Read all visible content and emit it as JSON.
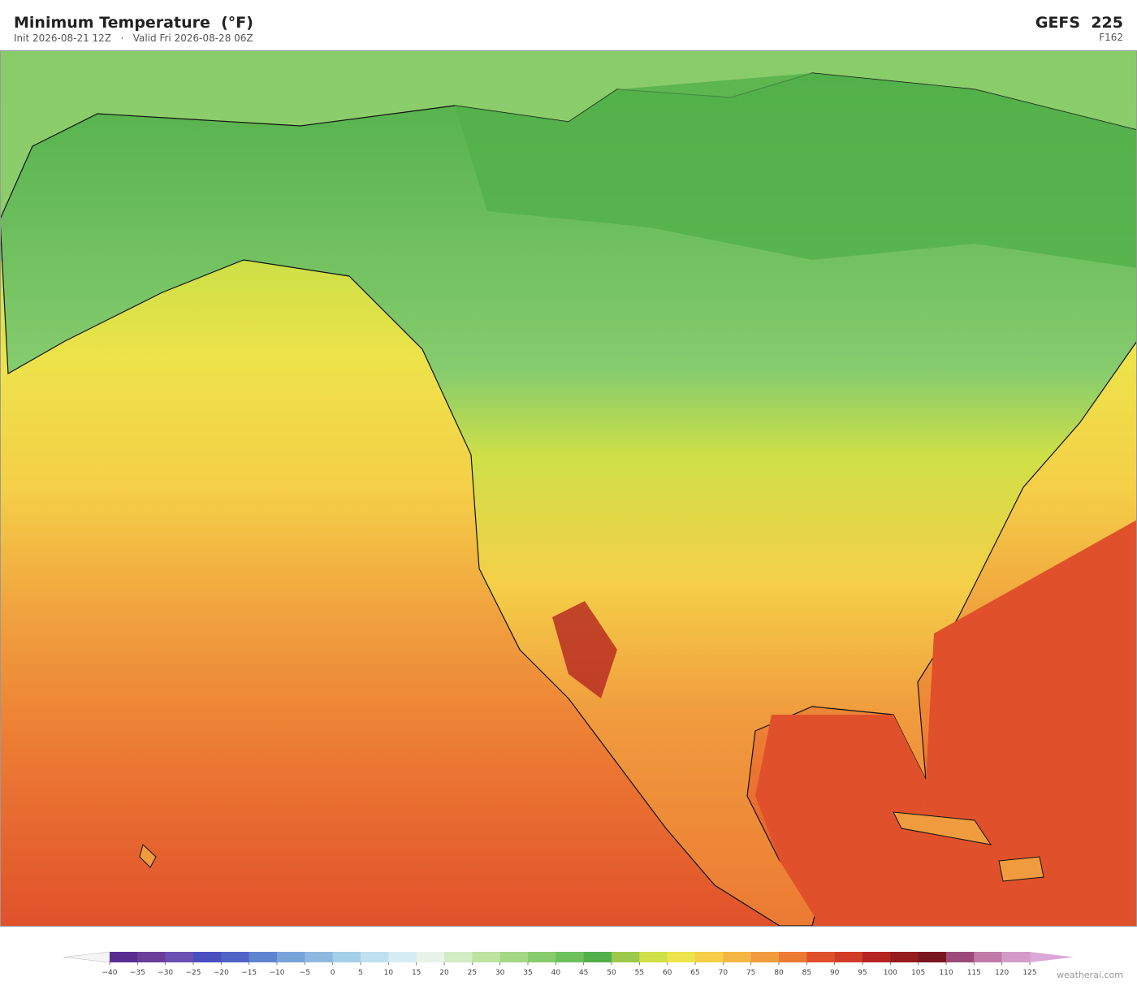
{
  "header": {
    "title": "Minimum Temperature  (°F)",
    "subtitle": "Init 2026-08-21 12Z   ·   Valid Fri 2026-08-28 06Z",
    "model": "GEFS  225",
    "forecast_hour": "F162"
  },
  "colorbar": {
    "ticks": [
      {
        "value": -40,
        "label": "−40"
      },
      {
        "value": -35,
        "label": "−35"
      },
      {
        "value": -30,
        "label": "−30"
      },
      {
        "value": -25,
        "label": "−25"
      },
      {
        "value": -20,
        "label": "−20"
      },
      {
        "value": -15,
        "label": "−15"
      },
      {
        "value": -10,
        "label": "−10"
      },
      {
        "value": -5,
        "label": "−5"
      },
      0,
      5,
      10,
      15,
      20,
      25,
      30,
      35,
      40,
      45,
      50,
      55,
      60,
      65,
      70,
      75,
      80,
      85,
      90,
      95,
      100,
      105,
      110,
      115,
      120,
      125
    ],
    "colors": [
      "#5a2d91",
      "#6a3d9a",
      "#6b4fb3",
      "#4a4fc0",
      "#4f63c9",
      "#5f84cf",
      "#76a3d8",
      "#8fb8e0",
      "#a5cfe8",
      "#bfe0ef",
      "#d6ecf3",
      "#e6f3e6",
      "#d2ecc4",
      "#bde3a0",
      "#a3d884",
      "#86cc6e",
      "#6cc15d",
      "#52b04a",
      "#9cc94a",
      "#cfe046",
      "#ede34a",
      "#f5cf47",
      "#f4b744",
      "#f09c3e",
      "#ec7a33",
      "#e0512b",
      "#d23b26",
      "#b52421",
      "#961c1e",
      "#7a1620",
      "#9b4a7a",
      "#c07aa8",
      "#d49ac8"
    ],
    "extend_colors": [
      "#f4f4f4",
      "#dba9d8"
    ]
  },
  "footer": {
    "credit": "weatherai.com"
  }
}
